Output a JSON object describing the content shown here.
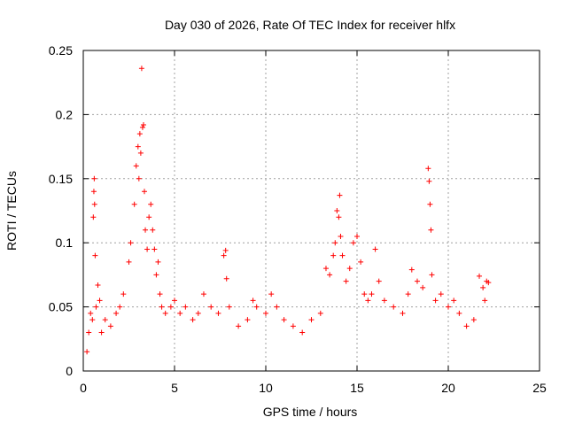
{
  "chart_data": {
    "type": "scatter",
    "title": "Day 030 of 2026, Rate Of TEC Index for receiver hlfx",
    "xlabel": "GPS time / hours",
    "ylabel": "ROTI / TECUs",
    "xlim": [
      0,
      25
    ],
    "ylim": [
      0,
      0.25
    ],
    "x_ticks": [
      "0",
      "5",
      "10",
      "15",
      "20",
      "25"
    ],
    "y_ticks": [
      "0",
      "0.05",
      "0.1",
      "0.15",
      "0.2",
      "0.25"
    ],
    "grid": true,
    "legend": "none",
    "marker": "plus",
    "color": "#ff0000",
    "series": [
      {
        "x": [
          0.2,
          0.3,
          0.4,
          0.5,
          0.55,
          0.58,
          0.6,
          0.62,
          0.65,
          0.7,
          0.8,
          0.9,
          1.0,
          1.2,
          1.5,
          1.8,
          2.0,
          2.2,
          2.5,
          2.6,
          2.8,
          2.9,
          3.0,
          3.05,
          3.1,
          3.15,
          3.2,
          3.25,
          3.3,
          3.35,
          3.4,
          3.5,
          3.6,
          3.7,
          3.8,
          3.9,
          4.0,
          4.1,
          4.2,
          4.3,
          4.5,
          4.8,
          5.0,
          5.3,
          5.6,
          6.0,
          6.3,
          6.6,
          7.0,
          7.4,
          7.7,
          7.8,
          7.85,
          8.0,
          8.5,
          9.0,
          9.3,
          9.5,
          10.0,
          10.3,
          10.6,
          11.0,
          11.5,
          12.0,
          12.5,
          13.0,
          13.3,
          13.5,
          13.7,
          13.8,
          13.9,
          14.0,
          14.05,
          14.1,
          14.2,
          14.4,
          14.6,
          14.8,
          15.0,
          15.2,
          15.4,
          15.6,
          15.8,
          16.0,
          16.2,
          16.5,
          17.0,
          17.5,
          17.8,
          18.0,
          18.3,
          18.6,
          18.9,
          18.95,
          19.0,
          19.05,
          19.1,
          19.3,
          19.6,
          20.0,
          20.3,
          20.6,
          21.0,
          21.4,
          21.7,
          21.9,
          22.0,
          22.1,
          22.2
        ],
        "y": [
          0.015,
          0.03,
          0.045,
          0.04,
          0.12,
          0.14,
          0.15,
          0.13,
          0.09,
          0.05,
          0.067,
          0.055,
          0.03,
          0.04,
          0.035,
          0.045,
          0.05,
          0.06,
          0.085,
          0.1,
          0.13,
          0.16,
          0.175,
          0.15,
          0.185,
          0.17,
          0.236,
          0.19,
          0.192,
          0.14,
          0.11,
          0.095,
          0.12,
          0.13,
          0.11,
          0.095,
          0.075,
          0.085,
          0.06,
          0.05,
          0.045,
          0.05,
          0.055,
          0.045,
          0.05,
          0.04,
          0.045,
          0.06,
          0.05,
          0.045,
          0.09,
          0.094,
          0.072,
          0.05,
          0.035,
          0.04,
          0.055,
          0.05,
          0.045,
          0.06,
          0.05,
          0.04,
          0.035,
          0.03,
          0.04,
          0.045,
          0.08,
          0.075,
          0.09,
          0.1,
          0.125,
          0.12,
          0.137,
          0.105,
          0.09,
          0.07,
          0.08,
          0.1,
          0.105,
          0.085,
          0.06,
          0.055,
          0.06,
          0.095,
          0.07,
          0.055,
          0.05,
          0.045,
          0.06,
          0.079,
          0.07,
          0.065,
          0.158,
          0.148,
          0.13,
          0.11,
          0.075,
          0.055,
          0.06,
          0.05,
          0.055,
          0.045,
          0.035,
          0.04,
          0.074,
          0.065,
          0.055,
          0.07,
          0.069
        ]
      }
    ]
  }
}
